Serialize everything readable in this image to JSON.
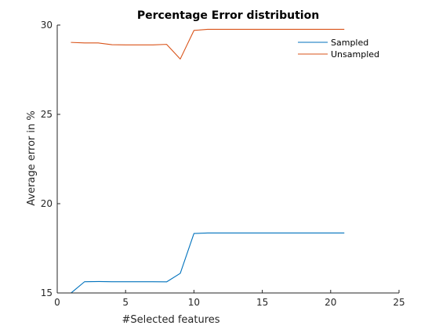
{
  "chart_data": {
    "type": "line",
    "title": "Percentage Error distribution",
    "xlabel": "#Selected features",
    "ylabel": "Average error in %",
    "xlim": [
      0,
      25
    ],
    "ylim": [
      15,
      30
    ],
    "xticks": [
      0,
      5,
      10,
      15,
      20,
      25
    ],
    "yticks": [
      15,
      20,
      25,
      30
    ],
    "grid": false,
    "legend_position": "top-right",
    "x": [
      1,
      2,
      3,
      4,
      5,
      6,
      7,
      8,
      9,
      10,
      11,
      12,
      13,
      14,
      15,
      16,
      17,
      18,
      19,
      20,
      21
    ],
    "series": [
      {
        "name": "Sampled",
        "color": "#0072BD",
        "values": [
          14.99,
          15.63,
          15.64,
          15.63,
          15.63,
          15.63,
          15.63,
          15.62,
          16.1,
          18.33,
          18.36,
          18.36,
          18.36,
          18.36,
          18.36,
          18.36,
          18.36,
          18.36,
          18.36,
          18.36,
          18.36
        ]
      },
      {
        "name": "Unsampled",
        "color": "#D95319",
        "values": [
          29.03,
          29.0,
          29.0,
          28.9,
          28.89,
          28.89,
          28.89,
          28.92,
          28.1,
          29.7,
          29.76,
          29.76,
          29.76,
          29.76,
          29.76,
          29.76,
          29.76,
          29.76,
          29.76,
          29.76,
          29.76
        ]
      }
    ]
  }
}
